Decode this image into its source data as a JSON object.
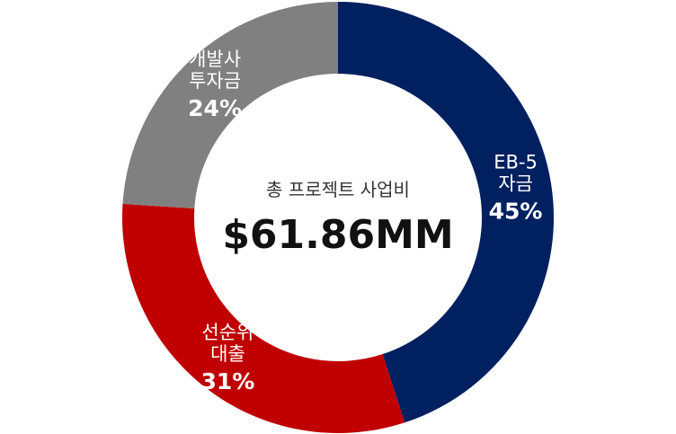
{
  "chart_data": {
    "type": "pie",
    "donut": true,
    "center_caption": "총 프로젝트 사업비",
    "center_value": "$61.86MM",
    "slices": [
      {
        "label_lines": [
          "EB-5",
          "자금"
        ],
        "value": 45,
        "value_label": "45%",
        "color": "#002060"
      },
      {
        "label_lines": [
          "선순위",
          "대출"
        ],
        "value": 31,
        "value_label": "31%",
        "color": "#C00000"
      },
      {
        "label_lines": [
          "개발사",
          "투자금"
        ],
        "value": 24,
        "value_label": "24%",
        "color": "#808080"
      }
    ],
    "start_position": "top",
    "direction": "clockwise",
    "legend": "none"
  }
}
